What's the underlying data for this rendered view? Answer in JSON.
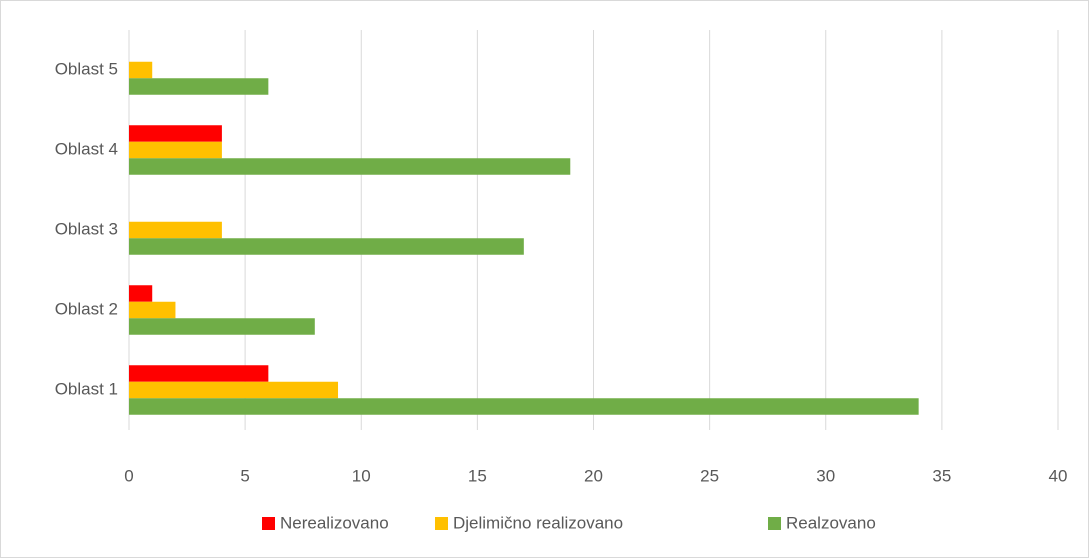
{
  "chart_data": {
    "type": "hbar",
    "categories": [
      "Oblast 1",
      "Oblast 2",
      "Oblast 3",
      "Oblast 4",
      "Oblast 5"
    ],
    "series": [
      {
        "name": "Nerealizovano",
        "color": "#ff0000",
        "values": [
          6,
          1,
          0,
          4,
          0
        ]
      },
      {
        "name": "Djelimično realizovano",
        "color": "#ffc000",
        "values": [
          9,
          2,
          4,
          4,
          1
        ]
      },
      {
        "name": "Realzovano",
        "color": "#70ad47",
        "values": [
          34,
          8,
          17,
          19,
          6
        ]
      }
    ],
    "xlim": [
      0,
      40
    ],
    "xticks": [
      0,
      5,
      10,
      15,
      20,
      25,
      30,
      35,
      40
    ],
    "grid": true,
    "legend": "bottom"
  }
}
